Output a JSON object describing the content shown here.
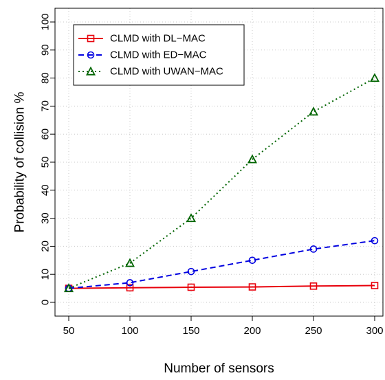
{
  "chart_data": {
    "type": "line",
    "title": "",
    "xlabel": "Number of sensors",
    "ylabel": "Probability of collision %",
    "x": [
      50,
      100,
      150,
      200,
      250,
      300
    ],
    "xlim": [
      50,
      300
    ],
    "ylim": [
      0,
      100
    ],
    "x_ticks": [
      "50",
      "100",
      "150",
      "200",
      "250",
      "300"
    ],
    "y_ticks": [
      "0",
      "10",
      "20",
      "30",
      "40",
      "50",
      "60",
      "70",
      "80",
      "90",
      "100"
    ],
    "grid": true,
    "legend_position": "top-left",
    "series": [
      {
        "name": "CLMD with DL−MAC",
        "values": [
          5,
          5.2,
          5.4,
          5.5,
          5.8,
          6
        ],
        "color": "#e8000b",
        "line_style": "solid",
        "marker": "square"
      },
      {
        "name": "CLMD with ED−MAC",
        "values": [
          5,
          7,
          11,
          15,
          19,
          22
        ],
        "color": "#0000e0",
        "line_style": "dashed",
        "marker": "circle"
      },
      {
        "name": "CLMD with UWAN−MAC",
        "values": [
          5,
          14,
          30,
          51,
          68,
          80
        ],
        "color": "#006400",
        "line_style": "dotted",
        "marker": "triangle"
      }
    ]
  }
}
